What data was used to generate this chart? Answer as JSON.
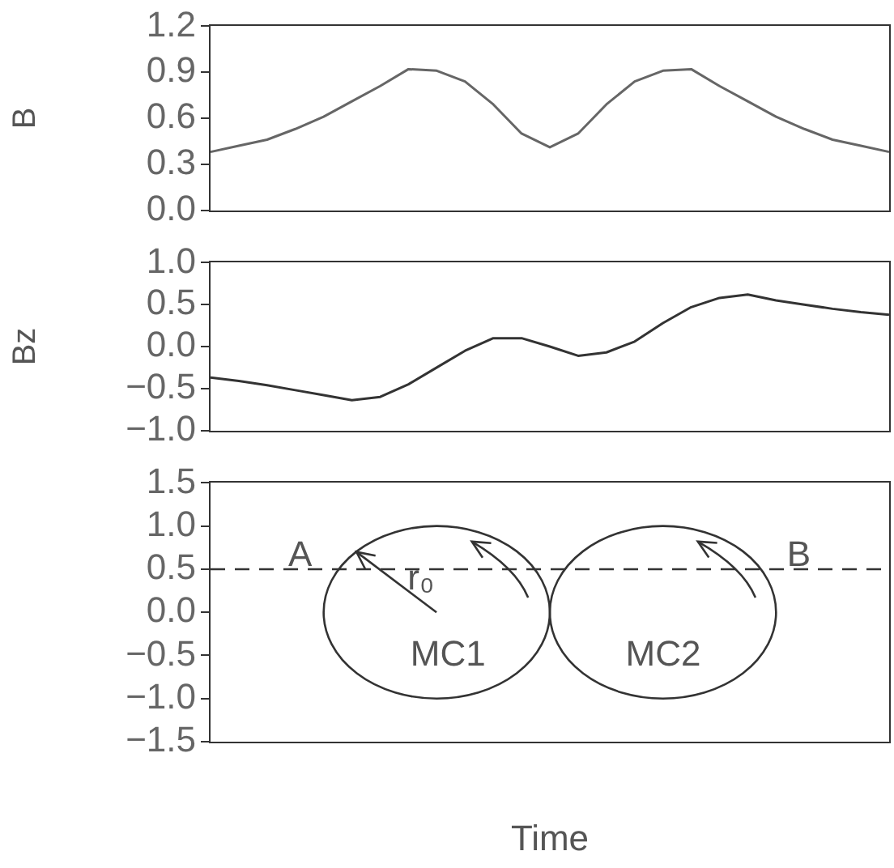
{
  "chart_data": [
    {
      "type": "line",
      "ylabel": "B",
      "categories": [
        null,
        null,
        null,
        null,
        null,
        null,
        null,
        null,
        null,
        null,
        null,
        null,
        null,
        null,
        null,
        null,
        null,
        null,
        null,
        null,
        null,
        null,
        null,
        null,
        null
      ],
      "ylim": [
        0,
        1.2
      ],
      "yticks": [
        {
          "value": 0,
          "label": "0.0"
        },
        {
          "value": 0.3,
          "label": "0.3"
        },
        {
          "value": 0.6,
          "label": "0.6"
        },
        {
          "value": 0.9,
          "label": "0.9"
        },
        {
          "value": 1.2,
          "label": "1.2"
        }
      ],
      "tick_labels": "y",
      "grid": false,
      "legend": false,
      "marker": "none",
      "line_style": "solid",
      "series": [
        {
          "color": "#666666",
          "values": [
            0.38,
            0.42,
            0.46,
            0.53,
            0.61,
            0.71,
            0.81,
            0.92,
            0.91,
            0.84,
            0.69,
            0.5,
            0.41,
            0.5,
            0.69,
            0.84,
            0.91,
            0.92,
            0.81,
            0.71,
            0.61,
            0.53,
            0.46,
            0.42,
            0.38
          ]
        }
      ]
    },
    {
      "type": "line",
      "ylabel": "Bz",
      "categories": [
        null,
        null,
        null,
        null,
        null,
        null,
        null,
        null,
        null,
        null,
        null,
        null,
        null,
        null,
        null,
        null,
        null,
        null,
        null,
        null,
        null,
        null,
        null,
        null,
        null
      ],
      "ylim": [
        -1,
        1
      ],
      "yticks": [
        {
          "value": -1,
          "label": "−1.0"
        },
        {
          "value": -0.5,
          "label": "−0.5"
        },
        {
          "value": 0,
          "label": "0.0"
        },
        {
          "value": 0.5,
          "label": "0.5"
        },
        {
          "value": 1,
          "label": "1.0"
        }
      ],
      "tick_labels": "y",
      "grid": false,
      "legend": false,
      "marker": "none",
      "line_style": "solid",
      "series": [
        {
          "color": "#333333",
          "values": [
            -0.37,
            -0.41,
            -0.46,
            -0.52,
            -0.58,
            -0.64,
            -0.6,
            -0.45,
            -0.25,
            -0.05,
            0.1,
            0.1,
            0,
            -0.11,
            -0.07,
            0.06,
            0.28,
            0.47,
            0.58,
            0.62,
            0.55,
            0.5,
            0.45,
            0.41,
            0.38
          ]
        }
      ]
    },
    {
      "type": "line",
      "xlabel": "Time",
      "categories": [
        null,
        null,
        null,
        null,
        null,
        null,
        null,
        null,
        null,
        null,
        null,
        null,
        null,
        null,
        null,
        null,
        null,
        null,
        null,
        null,
        null,
        null,
        null,
        null,
        null
      ],
      "ylim": [
        -1.5,
        1.5
      ],
      "yticks": [
        {
          "value": -1.5,
          "label": "−1.5"
        },
        {
          "value": -1,
          "label": "−1.0"
        },
        {
          "value": -0.5,
          "label": "−0.5"
        },
        {
          "value": 0,
          "label": "0.0"
        },
        {
          "value": 0.5,
          "label": "0.5"
        },
        {
          "value": 1,
          "label": "1.0"
        },
        {
          "value": 1.5,
          "label": "1.5"
        }
      ],
      "tick_labels": "y",
      "grid": false,
      "legend": false,
      "marker": "none",
      "annotations": [
        "A",
        "B",
        "r₀",
        "MC1",
        "MC2"
      ],
      "series": [
        {
          "color": "#333333",
          "line_style": "dashed",
          "values": [
            0.5,
            0.5,
            0.5,
            0.5,
            0.5,
            0.5,
            0.5,
            0.5,
            0.5,
            0.5,
            0.5,
            0.5,
            0.5,
            0.5,
            0.5,
            0.5,
            0.5,
            0.5,
            0.5,
            0.5,
            0.5,
            0.5,
            0.5,
            0.5,
            0.5
          ]
        }
      ]
    }
  ]
}
